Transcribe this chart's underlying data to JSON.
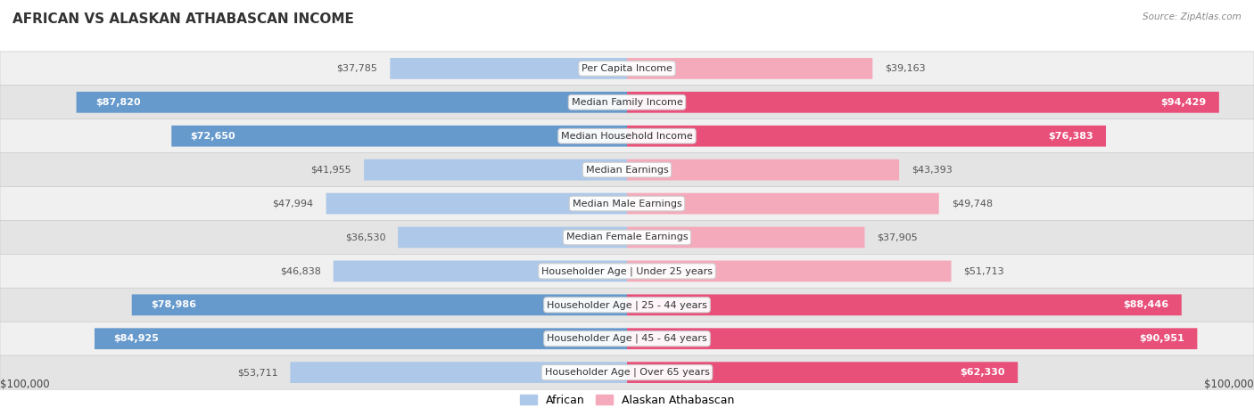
{
  "title": "AFRICAN VS ALASKAN ATHABASCAN INCOME",
  "source": "Source: ZipAtlas.com",
  "categories": [
    "Per Capita Income",
    "Median Family Income",
    "Median Household Income",
    "Median Earnings",
    "Median Male Earnings",
    "Median Female Earnings",
    "Householder Age | Under 25 years",
    "Householder Age | 25 - 44 years",
    "Householder Age | 45 - 64 years",
    "Householder Age | Over 65 years"
  ],
  "african_values": [
    37785,
    87820,
    72650,
    41955,
    47994,
    36530,
    46838,
    78986,
    84925,
    53711
  ],
  "alaskan_values": [
    39163,
    94429,
    76383,
    43393,
    49748,
    37905,
    51713,
    88446,
    90951,
    62330
  ],
  "max_value": 100000,
  "african_color_light": "#adc8e8",
  "african_color_dark": "#6699cc",
  "alaskan_color_light": "#f5aabb",
  "alaskan_color_dark": "#e8507a",
  "label_color_inside": "#ffffff",
  "label_color_outside": "#555555",
  "bg_row_odd": "#f0f0f0",
  "bg_row_even": "#e4e4e4",
  "bar_height": 0.62,
  "legend_label_african": "African",
  "legend_label_alaskan": "Alaskan Athabascan",
  "xlabel_left": "$100,000",
  "xlabel_right": "$100,000",
  "threshold_dark": 60000
}
